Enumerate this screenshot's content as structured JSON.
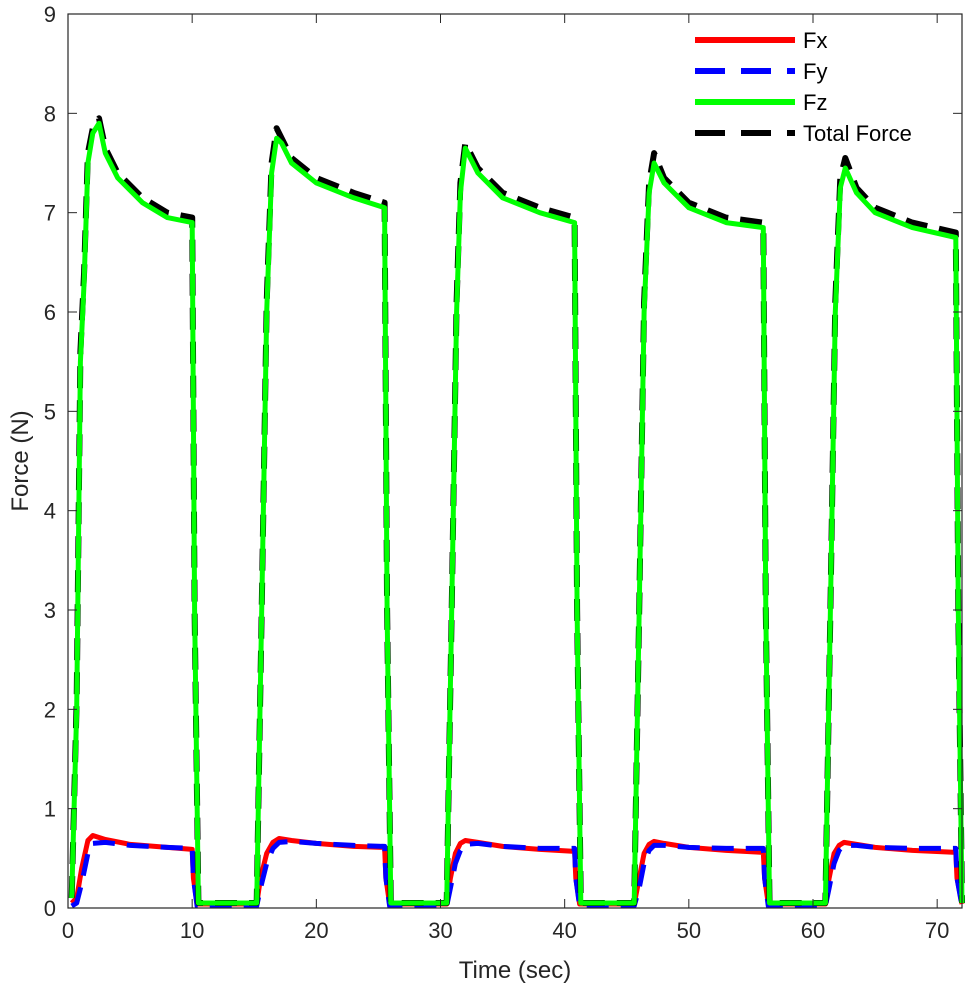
{
  "chart_data": {
    "type": "line",
    "xlabel": "Time (sec)",
    "ylabel": "Force (N)",
    "xlim": [
      0,
      72
    ],
    "ylim": [
      0,
      9
    ],
    "xticks": [
      0,
      10,
      20,
      30,
      40,
      50,
      60,
      70
    ],
    "yticks": [
      0,
      1,
      2,
      3,
      4,
      5,
      6,
      7,
      8,
      9
    ],
    "grid": false,
    "legend_position": "top-right",
    "series": [
      {
        "name": "Fx",
        "color": "#ff0000",
        "dash": "solid",
        "x": [
          0.3,
          0.7,
          1.1,
          1.6,
          2.0,
          3.0,
          5.0,
          8.0,
          10.0,
          10.1,
          10.4,
          15.2,
          15.5,
          16.0,
          16.5,
          17.0,
          18.0,
          20.0,
          23.0,
          25.5,
          25.6,
          25.9,
          30.5,
          30.8,
          31.2,
          31.6,
          32.0,
          33.0,
          35.0,
          38.0,
          40.8,
          40.9,
          41.2,
          45.6,
          46.0,
          46.4,
          46.8,
          47.2,
          48.0,
          50.0,
          53.0,
          56.0,
          56.1,
          56.4,
          61.0,
          61.3,
          61.7,
          62.1,
          62.5,
          63.5,
          65.0,
          68.0,
          71.5,
          71.6,
          72.0
        ],
        "y": [
          0.05,
          0.1,
          0.4,
          0.68,
          0.73,
          0.69,
          0.64,
          0.61,
          0.59,
          0.3,
          0.04,
          0.04,
          0.3,
          0.55,
          0.66,
          0.7,
          0.68,
          0.65,
          0.62,
          0.61,
          0.3,
          0.04,
          0.04,
          0.3,
          0.55,
          0.65,
          0.68,
          0.66,
          0.62,
          0.59,
          0.57,
          0.3,
          0.04,
          0.04,
          0.3,
          0.55,
          0.64,
          0.67,
          0.65,
          0.61,
          0.58,
          0.56,
          0.3,
          0.04,
          0.04,
          0.3,
          0.55,
          0.63,
          0.66,
          0.64,
          0.61,
          0.58,
          0.56,
          0.3,
          0.04
        ]
      },
      {
        "name": "Fy",
        "color": "#0000ff",
        "dash": "dashed",
        "x": [
          0.3,
          0.7,
          1.1,
          1.6,
          2.0,
          3.0,
          5.0,
          8.0,
          10.0,
          10.1,
          10.4,
          15.2,
          15.5,
          16.0,
          16.5,
          17.0,
          18.0,
          20.0,
          23.0,
          25.5,
          25.6,
          25.9,
          30.5,
          30.8,
          31.2,
          31.6,
          32.0,
          33.0,
          35.0,
          38.0,
          40.8,
          40.9,
          41.2,
          45.6,
          46.0,
          46.4,
          46.8,
          47.2,
          48.0,
          50.0,
          53.0,
          56.0,
          56.1,
          56.4,
          61.0,
          61.3,
          61.7,
          62.1,
          62.5,
          63.5,
          65.0,
          68.0,
          71.5,
          71.6,
          72.0
        ],
        "y": [
          0.02,
          0.05,
          0.25,
          0.55,
          0.65,
          0.66,
          0.63,
          0.61,
          0.6,
          0.3,
          0.02,
          0.02,
          0.2,
          0.45,
          0.6,
          0.66,
          0.67,
          0.65,
          0.63,
          0.62,
          0.3,
          0.02,
          0.02,
          0.2,
          0.45,
          0.58,
          0.64,
          0.65,
          0.62,
          0.6,
          0.6,
          0.3,
          0.02,
          0.02,
          0.2,
          0.45,
          0.58,
          0.63,
          0.63,
          0.61,
          0.6,
          0.6,
          0.3,
          0.02,
          0.02,
          0.2,
          0.45,
          0.58,
          0.63,
          0.63,
          0.61,
          0.6,
          0.6,
          0.3,
          0.02
        ]
      },
      {
        "name": "Fz",
        "color": "#00ff00",
        "dash": "solid",
        "x": [
          0.3,
          0.7,
          1.0,
          1.3,
          1.6,
          2.0,
          2.5,
          3.0,
          4.0,
          6.0,
          8.0,
          10.0,
          10.2,
          10.5,
          15.2,
          15.6,
          16.0,
          16.4,
          16.8,
          17.2,
          18.0,
          20.0,
          23.0,
          25.5,
          25.7,
          26.0,
          30.5,
          30.9,
          31.3,
          31.6,
          32.0,
          33.0,
          35.0,
          38.0,
          40.8,
          41.0,
          41.3,
          45.6,
          46.0,
          46.4,
          46.8,
          47.2,
          48.0,
          50.0,
          53.0,
          56.0,
          56.2,
          56.5,
          61.0,
          61.4,
          61.8,
          62.2,
          62.6,
          63.5,
          65.0,
          68.0,
          71.5,
          71.7,
          72.0
        ],
        "y": [
          0.1,
          2.0,
          5.5,
          6.3,
          7.5,
          7.8,
          7.9,
          7.6,
          7.35,
          7.1,
          6.95,
          6.9,
          3.0,
          0.05,
          0.05,
          3.0,
          6.0,
          7.4,
          7.75,
          7.7,
          7.5,
          7.3,
          7.15,
          7.05,
          3.0,
          0.05,
          0.05,
          3.0,
          6.0,
          7.2,
          7.65,
          7.4,
          7.15,
          7.0,
          6.9,
          3.0,
          0.05,
          0.05,
          3.0,
          6.0,
          7.2,
          7.5,
          7.3,
          7.05,
          6.9,
          6.85,
          3.0,
          0.05,
          0.05,
          3.0,
          6.0,
          7.25,
          7.45,
          7.2,
          7.0,
          6.85,
          6.75,
          3.0,
          0.05
        ]
      },
      {
        "name": "Total Force",
        "color": "#000000",
        "dash": "dashed",
        "x": [
          0.3,
          0.7,
          1.0,
          1.3,
          1.6,
          2.0,
          2.5,
          3.0,
          4.0,
          6.0,
          8.0,
          10.0,
          10.2,
          10.5,
          15.2,
          15.6,
          16.0,
          16.4,
          16.8,
          17.2,
          18.0,
          20.0,
          23.0,
          25.5,
          25.7,
          26.0,
          30.5,
          30.9,
          31.3,
          31.6,
          32.0,
          33.0,
          35.0,
          38.0,
          40.8,
          41.0,
          41.3,
          45.6,
          46.0,
          46.4,
          46.8,
          47.2,
          48.0,
          50.0,
          53.0,
          56.0,
          56.2,
          56.5,
          61.0,
          61.4,
          61.8,
          62.2,
          62.6,
          63.5,
          65.0,
          68.0,
          71.5,
          71.7,
          72.0
        ],
        "y": [
          0.1,
          2.1,
          5.6,
          6.4,
          7.6,
          7.85,
          7.95,
          7.65,
          7.4,
          7.15,
          7.0,
          6.95,
          3.0,
          0.05,
          0.05,
          3.0,
          6.1,
          7.5,
          7.85,
          7.75,
          7.55,
          7.35,
          7.2,
          7.1,
          3.0,
          0.05,
          0.05,
          3.0,
          6.1,
          7.3,
          7.7,
          7.45,
          7.2,
          7.05,
          6.95,
          3.0,
          0.05,
          0.05,
          3.0,
          6.1,
          7.3,
          7.6,
          7.35,
          7.1,
          6.95,
          6.9,
          3.0,
          0.05,
          0.05,
          3.0,
          6.1,
          7.35,
          7.55,
          7.25,
          7.05,
          6.9,
          6.8,
          3.0,
          0.05
        ]
      }
    ]
  }
}
